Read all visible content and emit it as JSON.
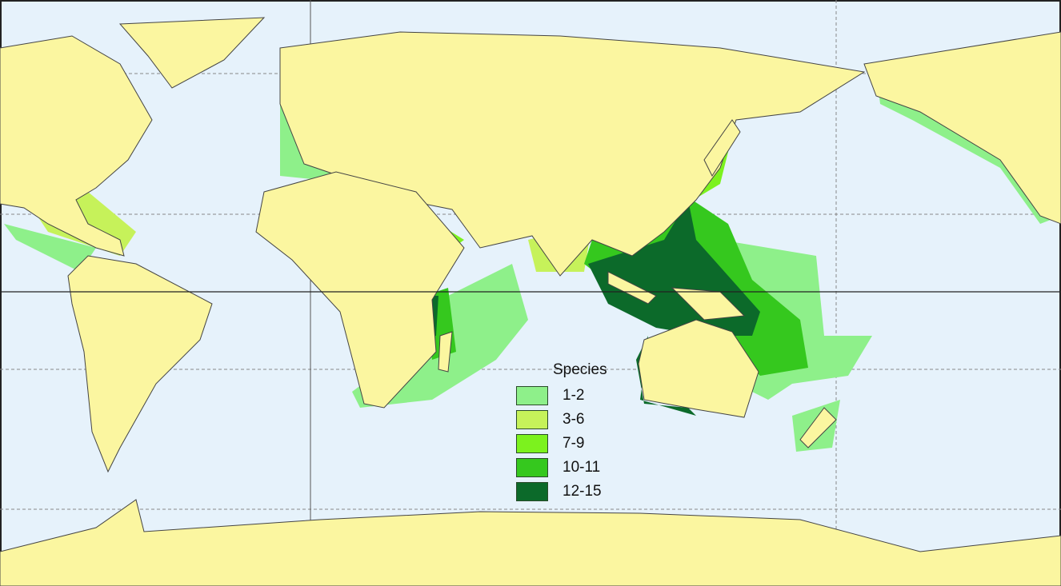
{
  "legend": {
    "title": "Species",
    "items": [
      {
        "label": "1-2",
        "color": "#8ef08a"
      },
      {
        "label": "3-6",
        "color": "#c6f25a"
      },
      {
        "label": "7-9",
        "color": "#7cf21e"
      },
      {
        "label": "10-11",
        "color": "#35c81e"
      },
      {
        "label": "12-15",
        "color": "#0c6a2a"
      }
    ]
  },
  "colors": {
    "ocean": "#e6f2fb",
    "land": "#fbf6a0",
    "border": "#333333",
    "occurrence_dot": "#1a6a7a"
  }
}
